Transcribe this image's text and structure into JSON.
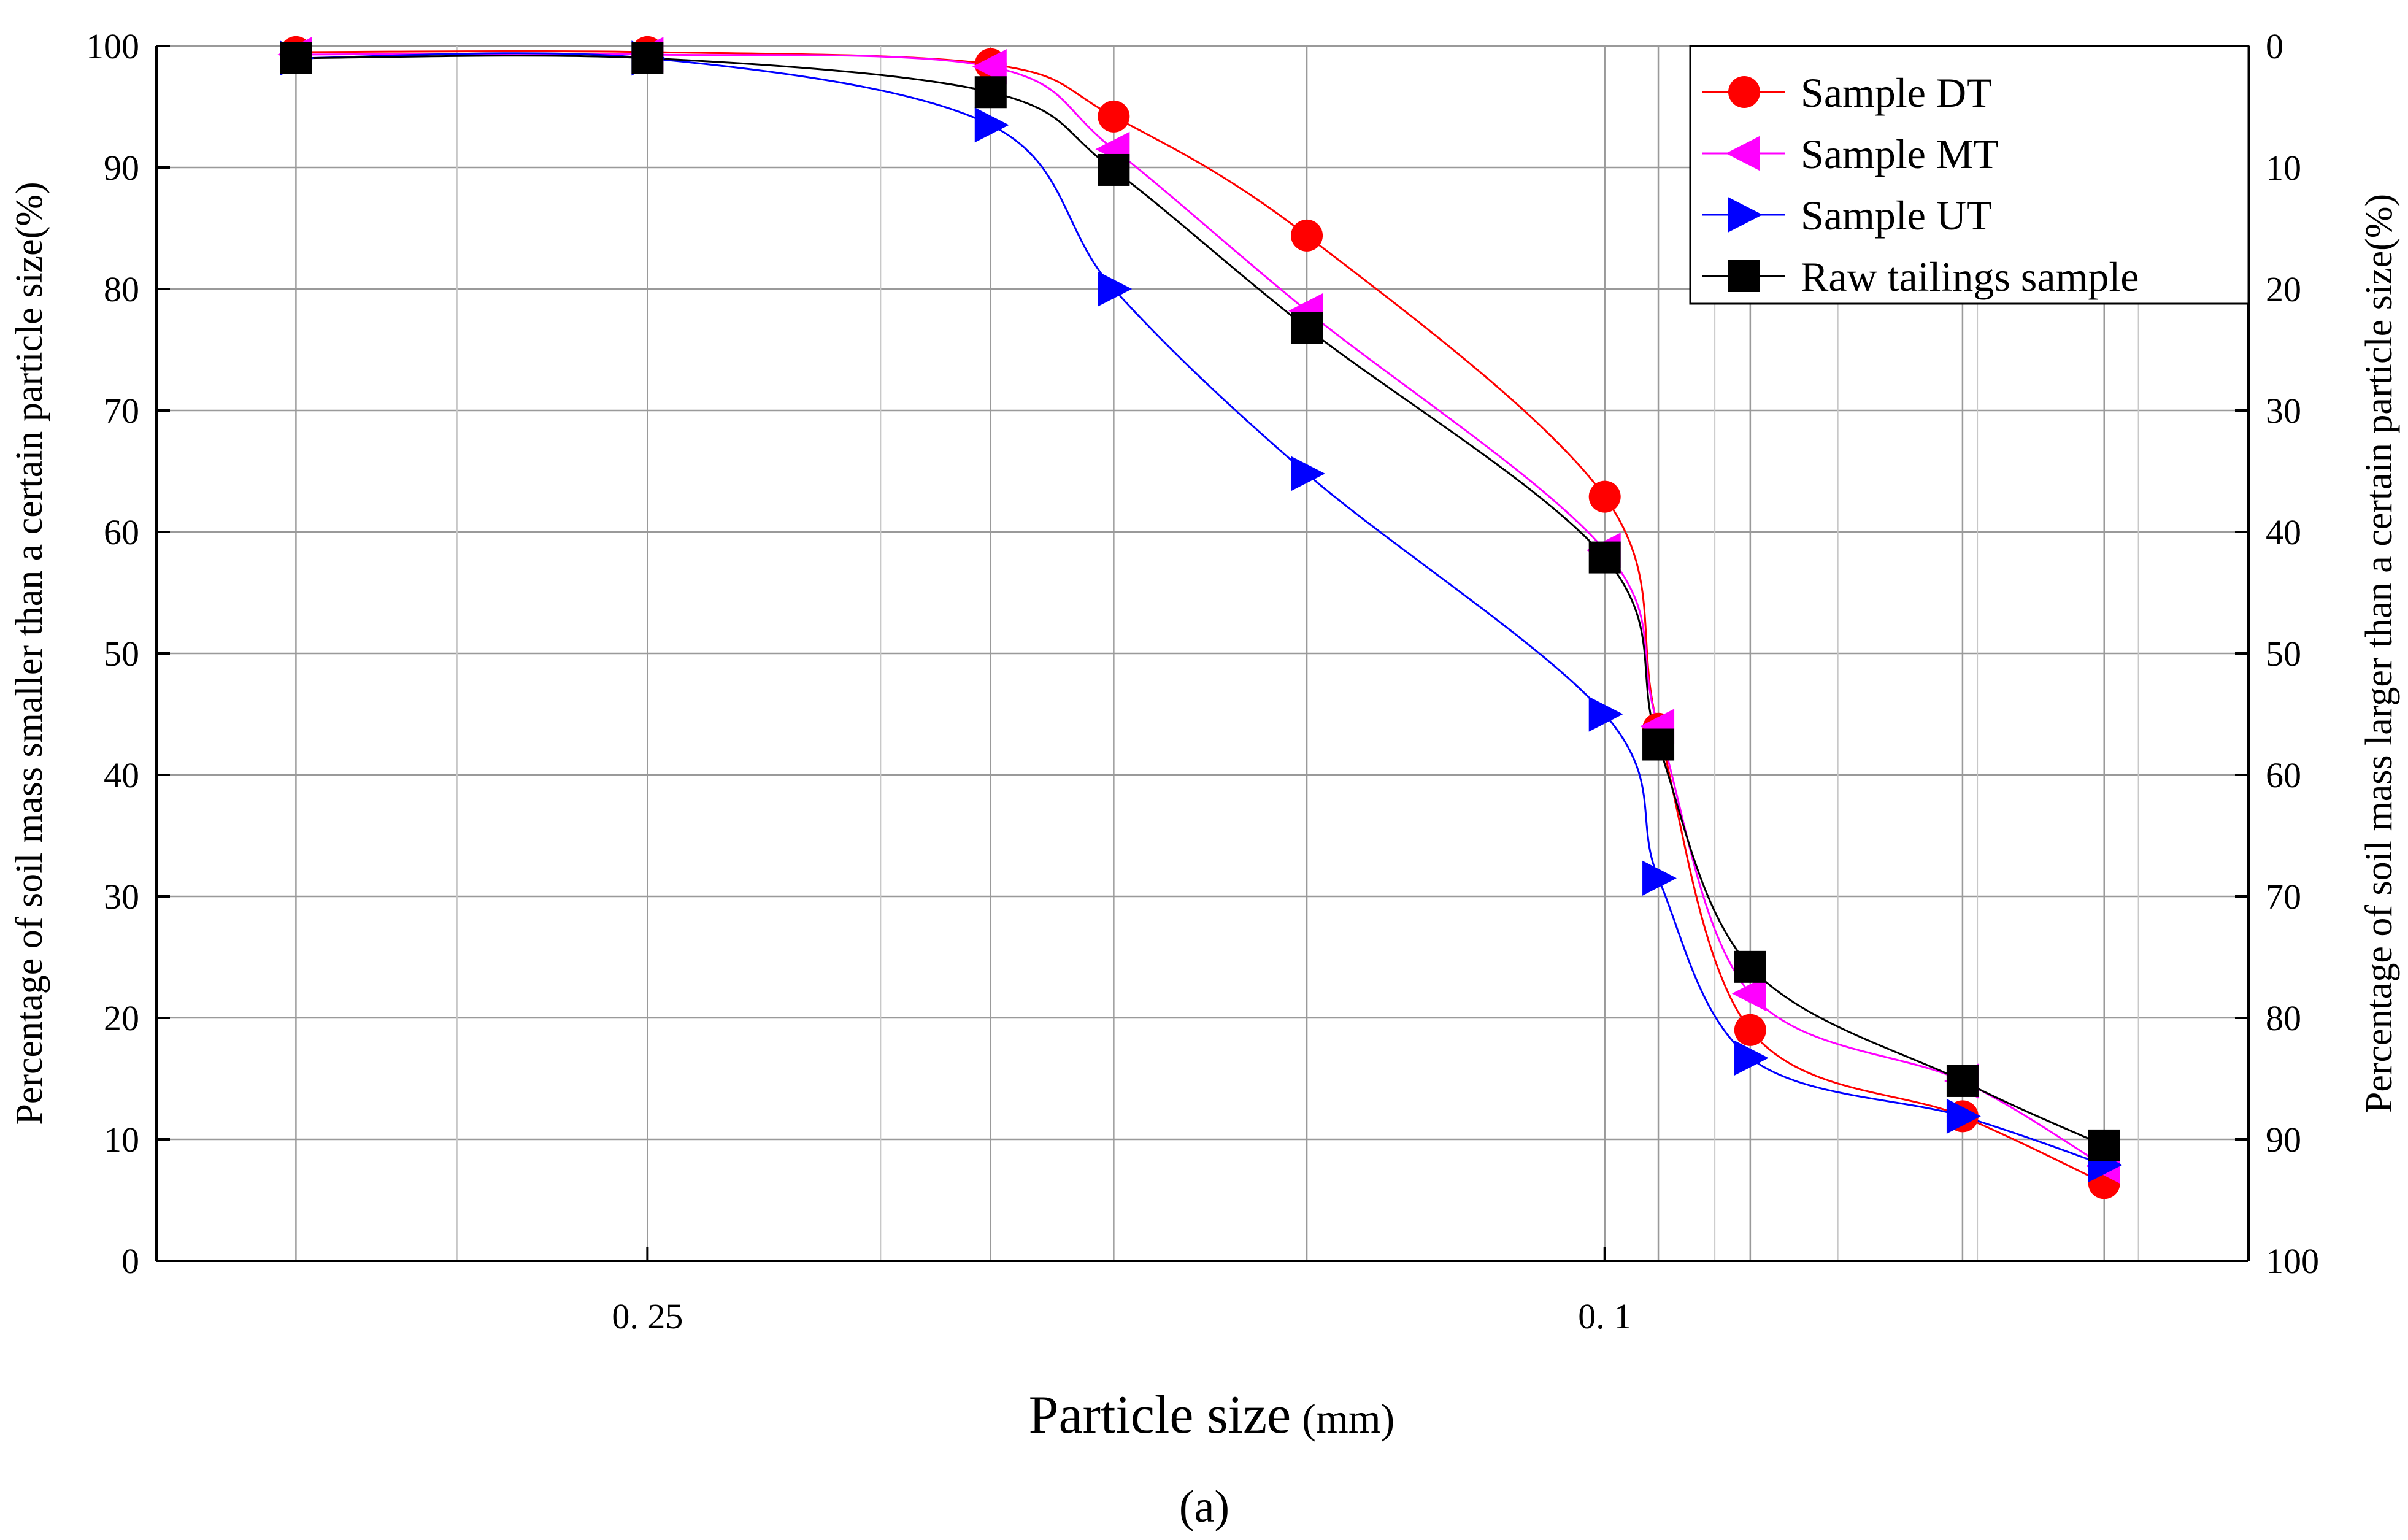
{
  "chart_data": {
    "type": "line",
    "xscale": "log",
    "xreversed": true,
    "xlim": [
      0.4,
      0.054
    ],
    "ylim": [
      0,
      100
    ],
    "y2lim": [
      100,
      0
    ],
    "x_ticks": [
      0.25,
      0.1
    ],
    "x_tick_labels": [
      "0. 25",
      "0. 1"
    ],
    "y_ticks": [
      0,
      10,
      20,
      30,
      40,
      50,
      60,
      70,
      80,
      90,
      100
    ],
    "y2_ticks": [
      100,
      90,
      80,
      70,
      60,
      50,
      40,
      30,
      20,
      10,
      0
    ],
    "xlabel": "Particle size",
    "xlabel_unit": "(mm)",
    "ylabel": "Percentage of soil mass smaller than a certain particle size(%)",
    "y2label": "Percentage of soil mass larger than a certain particle size(%)",
    "panel_label": "(a)",
    "grid": true,
    "legend_position": "top-right",
    "series": [
      {
        "name": "Sample DT",
        "color": "#ff0000",
        "marker": "circle",
        "points": [
          [
            0.35,
            99.5
          ],
          [
            0.25,
            99.5
          ],
          [
            0.18,
            98.5
          ],
          [
            0.16,
            94.2
          ],
          [
            0.133,
            84.4
          ],
          [
            0.1,
            62.9
          ],
          [
            0.095,
            43.8
          ],
          [
            0.087,
            19.0
          ],
          [
            0.071,
            11.9
          ],
          [
            0.062,
            6.4
          ]
        ]
      },
      {
        "name": "Sample MT",
        "color": "#ff00ff",
        "marker": "triangle-left",
        "points": [
          [
            0.35,
            99.3
          ],
          [
            0.25,
            99.3
          ],
          [
            0.18,
            98.3
          ],
          [
            0.16,
            91.5
          ],
          [
            0.133,
            78.2
          ],
          [
            0.1,
            58.5
          ],
          [
            0.095,
            44.0
          ],
          [
            0.087,
            22.0
          ],
          [
            0.071,
            14.8
          ],
          [
            0.062,
            7.8
          ]
        ]
      },
      {
        "name": "Sample UT",
        "color": "#0000ff",
        "marker": "triangle-right",
        "points": [
          [
            0.35,
            99.0
          ],
          [
            0.25,
            99.0
          ],
          [
            0.18,
            93.5
          ],
          [
            0.16,
            80.0
          ],
          [
            0.133,
            64.8
          ],
          [
            0.1,
            45.0
          ],
          [
            0.095,
            31.5
          ],
          [
            0.087,
            16.7
          ],
          [
            0.071,
            11.9
          ],
          [
            0.062,
            7.9
          ]
        ]
      },
      {
        "name": "Raw tailings sample",
        "color": "#000000",
        "marker": "square",
        "points": [
          [
            0.35,
            99.0
          ],
          [
            0.25,
            99.0
          ],
          [
            0.18,
            96.2
          ],
          [
            0.16,
            89.8
          ],
          [
            0.133,
            76.8
          ],
          [
            0.1,
            57.9
          ],
          [
            0.095,
            42.5
          ],
          [
            0.087,
            24.2
          ],
          [
            0.071,
            14.8
          ],
          [
            0.062,
            9.5
          ]
        ]
      }
    ]
  }
}
